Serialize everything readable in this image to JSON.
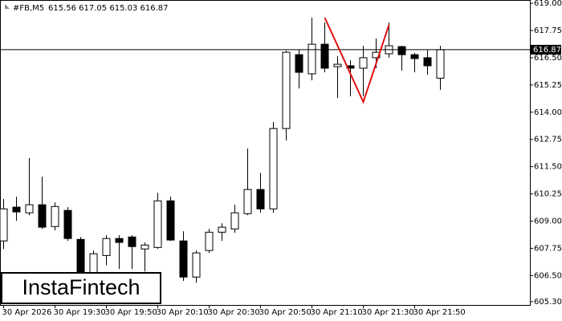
{
  "chart_data": {
    "type": "candlestick",
    "symbol": "#FB,M5",
    "ohlc_label": "615.56 617.05 615.03 616.87",
    "watermark": "InstaFintech",
    "categories": [
      "30 Apr 2026",
      null,
      null,
      null,
      "30 Apr 19:30",
      null,
      null,
      null,
      "30 Apr 19:50",
      null,
      null,
      null,
      "30 Apr 20:10",
      null,
      null,
      null,
      "30 Apr 20:30",
      null,
      null,
      null,
      "30 Apr 20:50",
      null,
      null,
      null,
      "30 Apr 21:10",
      null,
      null,
      null,
      "30 Apr 21:30",
      null,
      null,
      null,
      "30 Apr 21:50",
      null,
      null
    ],
    "open": [
      608.09,
      609.64,
      609.38,
      609.75,
      608.75,
      609.49,
      608.16,
      606.43,
      607.42,
      608.2,
      608.27,
      607.72,
      607.79,
      609.93,
      608.09,
      606.43,
      607.65,
      608.49,
      608.64,
      609.34,
      610.45,
      609.56,
      613.25,
      616.64,
      615.76,
      617.12,
      616.09,
      616.13,
      616.02,
      616.5,
      616.68,
      617.01,
      616.64,
      616.5,
      615.56
    ],
    "high": [
      610.01,
      610.12,
      611.89,
      611.04,
      609.86,
      609.64,
      608.27,
      607.65,
      608.35,
      608.35,
      608.35,
      608.02,
      610.3,
      610.12,
      608.53,
      607.65,
      608.64,
      608.9,
      609.75,
      612.33,
      611.22,
      613.55,
      616.83,
      616.86,
      618.34,
      618.12,
      616.57,
      616.38,
      617.05,
      617.38,
      618.12,
      617.05,
      616.72,
      616.86,
      617.05
    ],
    "low": [
      607.72,
      609.01,
      609.27,
      608.64,
      608.57,
      608.09,
      605.88,
      606.25,
      606.98,
      606.8,
      606.8,
      606.69,
      607.72,
      608.09,
      606.25,
      606.17,
      607.54,
      608.09,
      608.46,
      609.27,
      609.38,
      609.38,
      612.7,
      615.09,
      615.46,
      615.83,
      614.65,
      614.73,
      614.73,
      616.02,
      616.5,
      615.91,
      615.83,
      615.72,
      615.03
    ],
    "close": [
      609.56,
      609.42,
      609.75,
      608.72,
      609.67,
      608.2,
      606.43,
      607.5,
      608.2,
      608.02,
      607.83,
      607.9,
      609.93,
      608.13,
      606.43,
      607.54,
      608.49,
      608.72,
      609.38,
      610.45,
      609.56,
      613.25,
      616.75,
      615.83,
      617.12,
      616.02,
      616.2,
      616.02,
      616.5,
      616.75,
      617.05,
      616.64,
      616.46,
      616.13,
      616.87
    ],
    "up_color": "#ffffff",
    "down_color": "#000000",
    "ylim": [
      605.15,
      619.15
    ],
    "yticks": [
      {
        "value": 605.3,
        "label": "605.30"
      },
      {
        "value": 606.5,
        "label": "606.50"
      },
      {
        "value": 607.75,
        "label": "607.75"
      },
      {
        "value": 609,
        "label": "609.00"
      },
      {
        "value": 610.25,
        "label": "610.25"
      },
      {
        "value": 611.5,
        "label": "611.50"
      },
      {
        "value": 612.75,
        "label": "612.75"
      },
      {
        "value": 614,
        "label": "614.00"
      },
      {
        "value": 615.25,
        "label": "615.25"
      },
      {
        "value": 616.5,
        "label": "616.50"
      },
      {
        "value": 617.75,
        "label": "617.75"
      },
      {
        "value": 619,
        "label": "619.00"
      }
    ],
    "current_price": {
      "value": 616.87,
      "label": "616.87"
    },
    "pattern": {
      "color": "#e01010",
      "category_index": [
        25,
        28,
        30
      ],
      "values": [
        618.34,
        614.47,
        618.01
      ]
    }
  }
}
